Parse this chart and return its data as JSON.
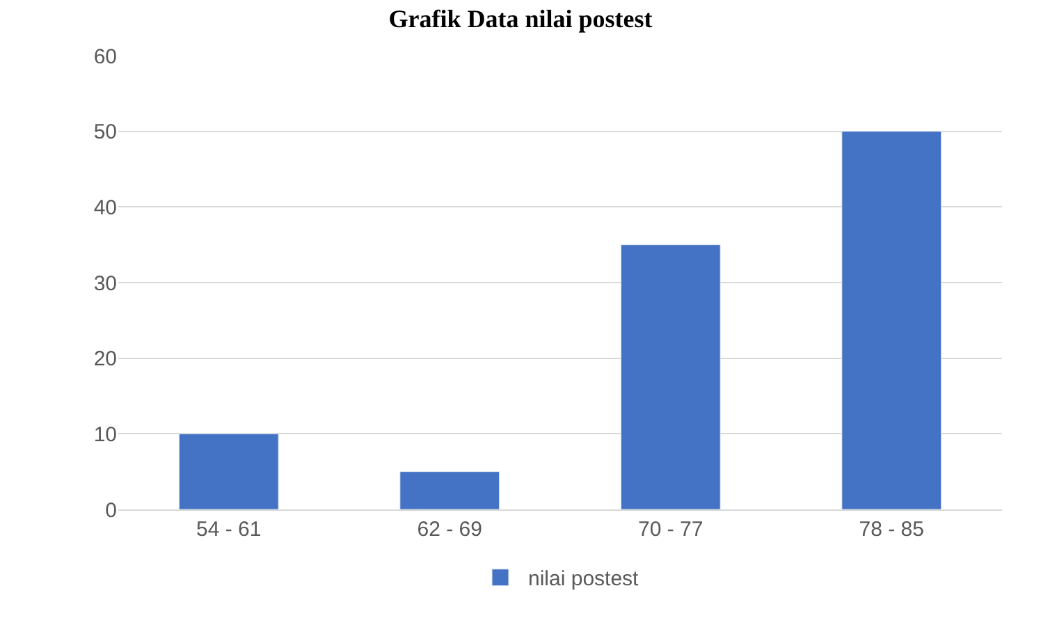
{
  "chart_data": {
    "type": "bar",
    "title": "Grafik Data nilai postest",
    "categories": [
      "54 - 61",
      "62 - 69",
      "70 - 77",
      "78 - 85"
    ],
    "series": [
      {
        "name": "nilai postest",
        "color": "#4472c4",
        "values": [
          10,
          5,
          35,
          50
        ]
      }
    ],
    "ylim": [
      0,
      60
    ],
    "yticks": [
      0,
      10,
      20,
      30,
      40,
      50,
      60
    ],
    "grid": "y",
    "legend": "bottom"
  }
}
